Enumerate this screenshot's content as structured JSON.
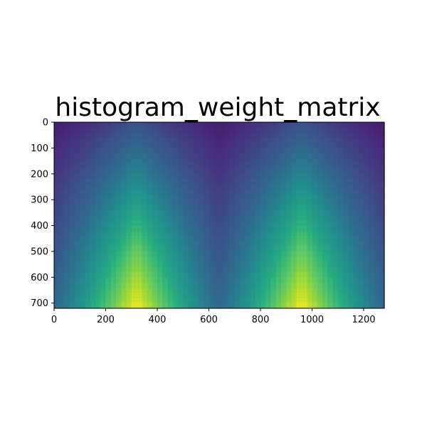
{
  "chart_data": {
    "type": "heatmap",
    "title": "histogram_weight_matrix",
    "xlabel": "",
    "ylabel": "",
    "xlim": [
      0,
      1280
    ],
    "ylim": [
      720,
      0
    ],
    "x_ticks": [
      0,
      200,
      400,
      600,
      800,
      1000,
      1200
    ],
    "y_ticks": [
      0,
      100,
      200,
      300,
      400,
      500,
      600,
      700
    ],
    "x_tick_labels": [
      "0",
      "200",
      "400",
      "600",
      "800",
      "1000",
      "1200"
    ],
    "y_tick_labels": [
      "0",
      "100",
      "200",
      "300",
      "400",
      "500",
      "600",
      "700"
    ],
    "colormap": "viridis",
    "peaks": [
      {
        "x": 320,
        "y": 720
      },
      {
        "x": 960,
        "y": 720
      }
    ],
    "minima_columns": [
      0,
      640,
      1280
    ],
    "grid": false
  }
}
